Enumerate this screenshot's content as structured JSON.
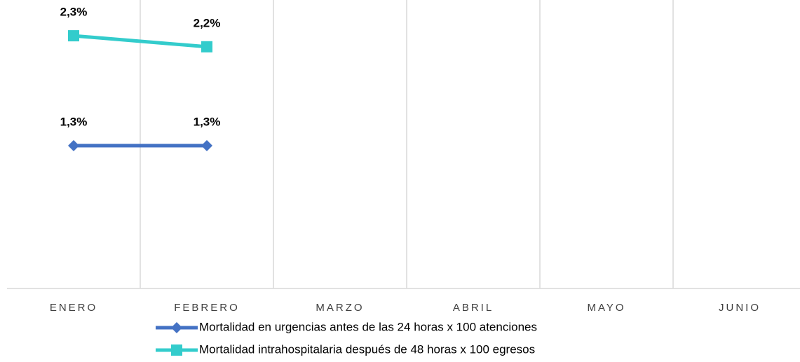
{
  "chart_data": {
    "type": "line",
    "categories": [
      "ENERO",
      "FEBRERO",
      "MARZO",
      "ABRIL",
      "MAYO",
      "JUNIO"
    ],
    "series": [
      {
        "name": "Mortalidad en urgencias antes de las 24 horas x 100 atenciones",
        "color": "#4472c4",
        "marker": "diamond",
        "values": [
          1.3,
          1.3,
          null,
          null,
          null,
          null
        ],
        "value_labels": [
          "1,3%",
          "1,3%",
          null,
          null,
          null,
          null
        ]
      },
      {
        "name": "Mortalidad intrahospitalaria después de 48 horas x 100 egresos",
        "color": "#33cccc",
        "marker": "square",
        "values": [
          2.3,
          2.2,
          null,
          null,
          null,
          null
        ],
        "value_labels": [
          "2,3%",
          "2,2%",
          null,
          null,
          null,
          null
        ]
      }
    ],
    "ylim": [
      0,
      2.6
    ]
  }
}
